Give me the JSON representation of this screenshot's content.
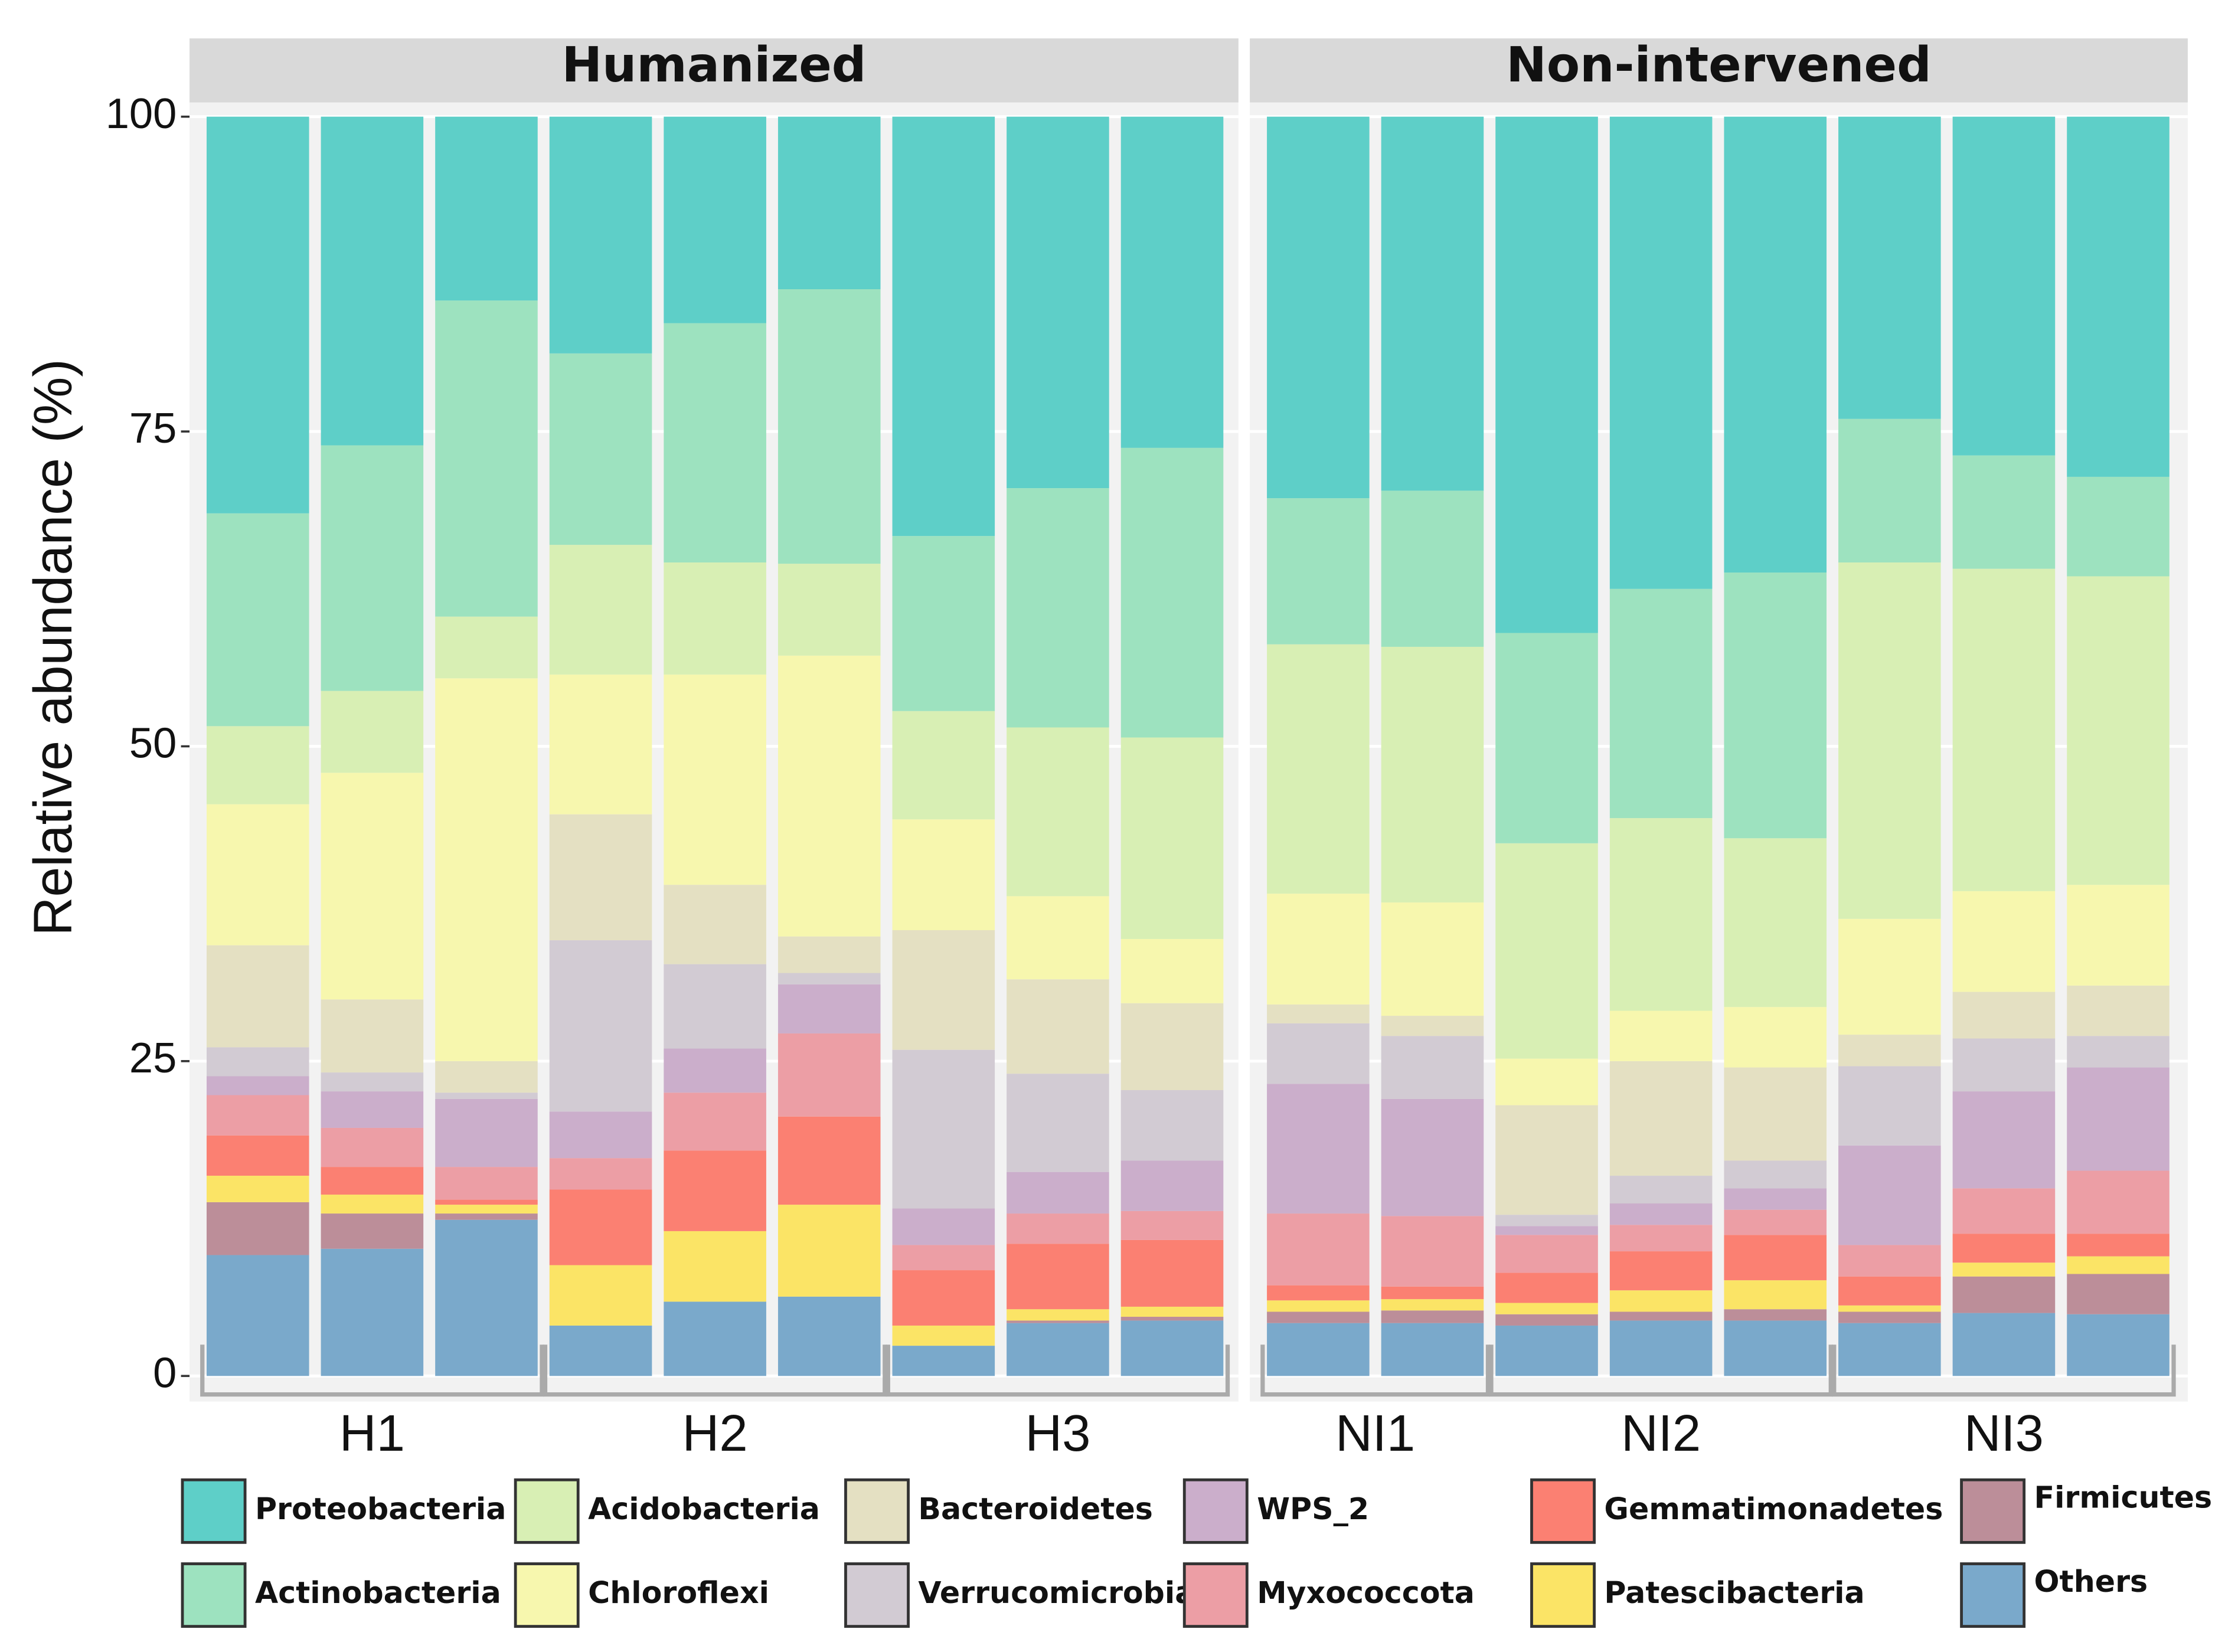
{
  "chart_data": {
    "type": "bar",
    "stacked": true,
    "y_label": "Relative abundance (%)",
    "ylim": [
      0,
      100
    ],
    "yticks": [
      0,
      25,
      50,
      75,
      100
    ],
    "grid": true,
    "panels": [
      {
        "title": "Humanized",
        "categories": [
          "H1",
          "H1",
          "H1",
          "H2",
          "H2",
          "H2",
          "H3",
          "H3",
          "H3"
        ]
      },
      {
        "title": "Non-intervened",
        "categories": [
          "NI1",
          "NI1",
          "NI2",
          "NI2",
          "NI2",
          "NI3",
          "NI3",
          "NI3"
        ]
      }
    ],
    "series": [
      {
        "name": "Proteobacteria",
        "color": "#5ecfc8",
        "values": [
          31.5,
          26.1,
          14.6,
          18.8,
          16.4,
          13.7,
          33.3,
          29.5,
          26.3,
          30.3,
          29.7,
          41.0,
          37.5,
          36.2,
          24.0,
          26.9,
          28.6
        ]
      },
      {
        "name": "Actinobacteria",
        "color": "#9de2bf",
        "values": [
          16.9,
          19.5,
          25.1,
          15.2,
          19.0,
          21.8,
          13.9,
          19.0,
          23.0,
          11.6,
          12.4,
          16.7,
          18.2,
          21.1,
          11.4,
          9.0,
          7.9
        ]
      },
      {
        "name": "Acidobacteria",
        "color": "#d8efb4",
        "values": [
          6.2,
          6.5,
          4.9,
          10.3,
          8.9,
          7.3,
          8.6,
          13.4,
          16.0,
          19.8,
          20.3,
          17.1,
          15.3,
          13.4,
          28.3,
          25.6,
          24.5
        ]
      },
      {
        "name": "Chloroflexi",
        "color": "#f7f7ae",
        "values": [
          11.2,
          18.0,
          30.4,
          11.1,
          16.7,
          22.3,
          8.8,
          6.6,
          5.1,
          8.8,
          9.0,
          3.7,
          4.0,
          4.8,
          9.2,
          8.0,
          8.0
        ]
      },
      {
        "name": "Bacteroidetes",
        "color": "#e4e0c2",
        "values": [
          8.1,
          5.8,
          2.5,
          10.0,
          6.3,
          2.9,
          9.5,
          7.5,
          6.9,
          1.5,
          1.6,
          8.7,
          9.1,
          7.4,
          2.5,
          3.7,
          4.0
        ]
      },
      {
        "name": "Verrucomicrobia",
        "color": "#d2cbd3",
        "values": [
          2.3,
          1.5,
          0.5,
          13.6,
          6.7,
          0.9,
          12.6,
          7.8,
          5.6,
          4.8,
          5.0,
          0.9,
          2.2,
          2.2,
          6.3,
          4.2,
          2.5
        ]
      },
      {
        "name": "WPS_2",
        "color": "#cbaecb",
        "values": [
          1.5,
          2.9,
          5.4,
          3.7,
          3.5,
          3.9,
          2.9,
          3.3,
          4.0,
          10.3,
          9.3,
          0.7,
          1.7,
          1.7,
          7.9,
          7.7,
          8.2
        ]
      },
      {
        "name": "Myxococcota",
        "color": "#ec9ea5",
        "values": [
          3.2,
          3.1,
          2.6,
          2.5,
          4.6,
          6.6,
          2.0,
          2.4,
          2.3,
          5.7,
          5.6,
          3.0,
          2.1,
          2.0,
          2.5,
          3.6,
          5.0
        ]
      },
      {
        "name": "Gemmatimonadetes",
        "color": "#fb8072",
        "values": [
          3.2,
          2.2,
          0.4,
          6.0,
          6.4,
          7.0,
          4.4,
          5.2,
          5.3,
          1.2,
          1.0,
          2.4,
          3.1,
          3.6,
          2.3,
          2.3,
          1.8
        ]
      },
      {
        "name": "Patescibacteria",
        "color": "#fbe466",
        "values": [
          2.1,
          1.5,
          0.7,
          4.8,
          5.6,
          7.3,
          1.6,
          0.9,
          0.8,
          0.9,
          0.9,
          0.9,
          1.7,
          2.3,
          0.5,
          1.1,
          1.4
        ]
      },
      {
        "name": "Firmicutes",
        "color": "#bc8e99",
        "values": [
          4.2,
          2.8,
          0.5,
          0,
          0,
          0,
          0,
          0.2,
          0.3,
          0.9,
          1.0,
          0.9,
          0.7,
          0.9,
          0.9,
          2.9,
          3.2
        ]
      },
      {
        "name": "Others",
        "color": "#7aa9cb",
        "values": [
          9.6,
          10.1,
          12.4,
          4.0,
          5.9,
          6.3,
          2.4,
          4.2,
          4.4,
          4.2,
          4.2,
          4.0,
          4.4,
          4.4,
          4.2,
          5.0,
          4.9
        ]
      }
    ]
  }
}
